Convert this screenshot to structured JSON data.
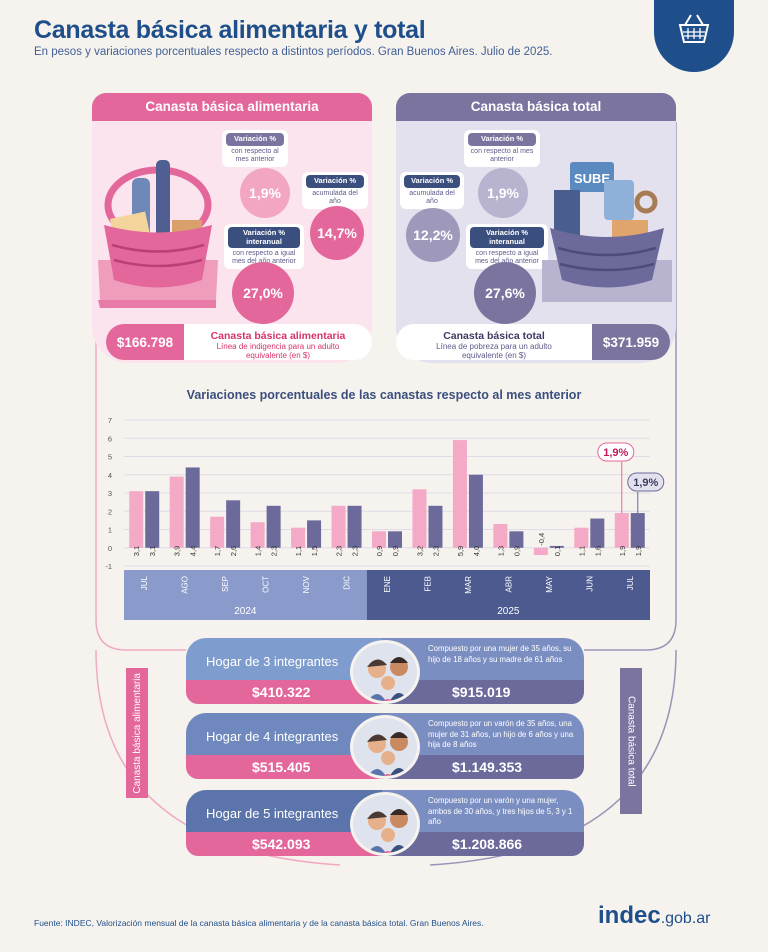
{
  "header": {
    "title": "Canasta básica alimentaria y total",
    "subtitle": "En pesos y variaciones porcentuales respecto a distintos períodos. Gran Buenos Aires. Julio de 2025."
  },
  "cba": {
    "title": "Canasta básica alimentaria",
    "var_mes": {
      "label": "Variación %",
      "desc": "con respecto al mes anterior",
      "value": "1,9%"
    },
    "var_acum": {
      "label": "Variación %",
      "desc": "acumulada del año",
      "value": "14,7%"
    },
    "var_inter": {
      "label": "Variación % interanual",
      "desc": "con respecto a igual mes del año anterior",
      "value": "27,0%"
    },
    "price": "$166.798",
    "line_title": "Canasta básica alimentaria",
    "line_desc": "Línea de indigencia para un adulto equivalente (en $)"
  },
  "cbt": {
    "title": "Canasta básica total",
    "var_mes": {
      "label": "Variación %",
      "desc": "con respecto al mes anterior",
      "value": "1,9%"
    },
    "var_acum": {
      "label": "Variación %",
      "desc": "acumulada del año",
      "value": "12,2%"
    },
    "var_inter": {
      "label": "Variación % interanual",
      "desc": "con respecto a igual mes del año anterior",
      "value": "27,6%"
    },
    "price": "$371.959",
    "line_title": "Canasta básica total",
    "line_desc": "Línea de pobreza para un adulto equivalente (en $)",
    "basket_tag": "SUBE"
  },
  "chart_data": {
    "type": "bar",
    "title": "Variaciones porcentuales de las canastas respecto al mes anterior",
    "categories": [
      "JUL",
      "AGO",
      "SEP",
      "OCT",
      "NOV",
      "DIC",
      "ENE",
      "FEB",
      "MAR",
      "ABR",
      "MAY",
      "JUN",
      "JUL"
    ],
    "years": [
      {
        "label": "2024",
        "months": 6
      },
      {
        "label": "2025",
        "months": 7
      }
    ],
    "series": [
      {
        "values": [
          3.1,
          3.9,
          1.7,
          1.4,
          1.1,
          2.3,
          0.9,
          3.2,
          5.9,
          1.3,
          -0.4,
          1.1,
          1.9
        ],
        "labels": [
          "3,1",
          "3,9",
          "1,7",
          "1,4",
          "1,1",
          "2,3",
          "0,9",
          "3,2",
          "5,9",
          "1,3",
          "-0,4",
          "1,1",
          "1,9"
        ]
      },
      {
        "values": [
          3.1,
          4.4,
          2.6,
          2.3,
          1.5,
          2.3,
          0.9,
          2.3,
          4.0,
          0.9,
          0.1,
          1.6,
          1.9
        ],
        "labels": [
          "3,1",
          "4,4",
          "2,6",
          "2,3",
          "1,5",
          "2,3",
          "0,9",
          "2,3",
          "4,0",
          "0,9",
          "0,1",
          "1,6",
          "1,9"
        ]
      }
    ],
    "yticks": [
      "7",
      "6",
      "5",
      "4",
      "3",
      "2",
      "1",
      "0",
      "-1"
    ],
    "ylim": [
      -1,
      7
    ],
    "callouts": [
      "1,9%",
      "1,9%"
    ],
    "colors": {
      "cba": "#f4a9c7",
      "cbt": "#6b6a9b"
    }
  },
  "households": [
    {
      "name": "Hogar de 3 integrantes",
      "cba": "$410.322",
      "cbt": "$915.019",
      "desc": "Compuesto por una mujer de 35 años, su hijo de 18 años y su madre de 61 años"
    },
    {
      "name": "Hogar de 4 integrantes",
      "cba": "$515.405",
      "cbt": "$1.149.353",
      "desc": "Compuesto por un varón de 35 años, una mujer de 31 años, un hijo de 6 años y una hija de 8 años"
    },
    {
      "name": "Hogar de 5 integrantes",
      "cba": "$542.093",
      "cbt": "$1.208.866",
      "desc": "Compuesto por un varón y una mujer, ambos de 30 años, y tres hijos de 5, 3 y 1 año"
    }
  ],
  "side_labels": {
    "left": "Canasta básica alimentaria",
    "right": "Canasta básica total"
  },
  "footer": {
    "source": "Fuente: INDEC, Valorización mensual de la canasta básica alimentaria y de la canasta básica total. Gran Buenos Aires.",
    "brand": "indec",
    "brand_suffix": ".gob.ar"
  },
  "colors": {
    "pink": "#e3679b",
    "pink_light": "#f7c9da",
    "purple": "#7b749f",
    "purple_dark": "#5b5b8a",
    "blue": "#1f4f8b"
  }
}
